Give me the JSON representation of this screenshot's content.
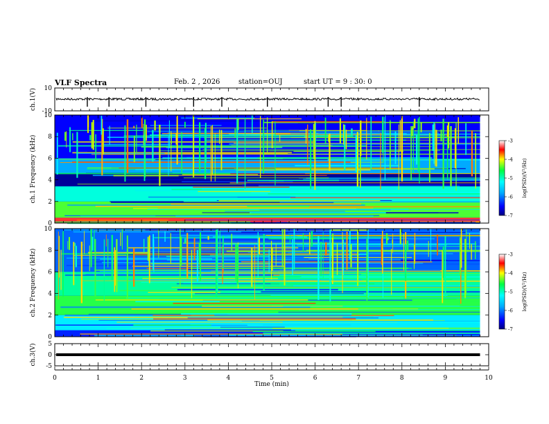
{
  "header": {
    "title": "VLF Spectra",
    "date": "Feb. 2 , 2026",
    "station": "station=OUJ",
    "start_ut": "start UT = 9 : 30: 0"
  },
  "chart_data": [
    {
      "type": "line",
      "panel": "ch1-waveform",
      "ylabel": "ch.1(V)",
      "ylim": [
        -10,
        10
      ],
      "yticks": [
        "10",
        "-10"
      ],
      "baseline_level": 0.3,
      "spike_times_min": [
        0.75,
        1.25,
        2.1,
        3.2,
        3.85,
        4.9,
        6.3,
        6.6,
        8.4
      ]
    },
    {
      "type": "heatmap",
      "panel": "ch1-spectrogram",
      "ylabel": "ch.1 Frequency (kHz)",
      "ylim": [
        0,
        10
      ],
      "yticks": [
        "0",
        "2",
        "4",
        "6",
        "8",
        "10"
      ],
      "background_levels": [
        {
          "f_khz": [
            0,
            0.5
          ],
          "level": -3.4
        },
        {
          "f_khz": [
            0.5,
            2
          ],
          "level": -4.8
        },
        {
          "f_khz": [
            2,
            3.4
          ],
          "level": -5.4
        },
        {
          "f_khz": [
            3.4,
            4.6
          ],
          "level": -6.9
        },
        {
          "f_khz": [
            4.6,
            6
          ],
          "level": -6.0
        },
        {
          "f_khz": [
            6,
            10
          ],
          "level": -6.5
        }
      ],
      "colorbar": {
        "label": "log(PSD)(V²/Hz)",
        "range": [
          -7,
          -3
        ],
        "ticks": [
          "-3",
          "-4",
          "-5",
          "-6",
          "-7"
        ]
      }
    },
    {
      "type": "heatmap",
      "panel": "ch2-spectrogram",
      "ylabel": "ch.2 Frequency (kHz)",
      "ylim": [
        0,
        10
      ],
      "yticks": [
        "0",
        "2",
        "4",
        "6",
        "8",
        "10"
      ],
      "background_levels": [
        {
          "f_khz": [
            0,
            0.6
          ],
          "level": -6.4
        },
        {
          "f_khz": [
            0.6,
            2
          ],
          "level": -5.6
        },
        {
          "f_khz": [
            2,
            3.8
          ],
          "level": -4.9
        },
        {
          "f_khz": [
            3.8,
            6
          ],
          "level": -5.2
        },
        {
          "f_khz": [
            6,
            10
          ],
          "level": -6.2
        }
      ],
      "colorbar": {
        "label": "log(PSD)(V²/Hz)",
        "range": [
          -7,
          -3
        ],
        "ticks": [
          "-3",
          "-4",
          "-5",
          "-6",
          "-7"
        ]
      }
    },
    {
      "type": "line",
      "panel": "ch3-waveform",
      "ylabel": "ch.3(V)",
      "ylim": [
        -5,
        5
      ],
      "yticks": [
        "5",
        "0",
        "-5"
      ],
      "baseline_level": 0.0
    }
  ],
  "x_axis": {
    "label": "Time (min)",
    "range": [
      0,
      10
    ],
    "data_end": 9.8,
    "ticks": [
      "0",
      "1",
      "2",
      "3",
      "4",
      "5",
      "6",
      "7",
      "8",
      "9",
      "10"
    ]
  }
}
